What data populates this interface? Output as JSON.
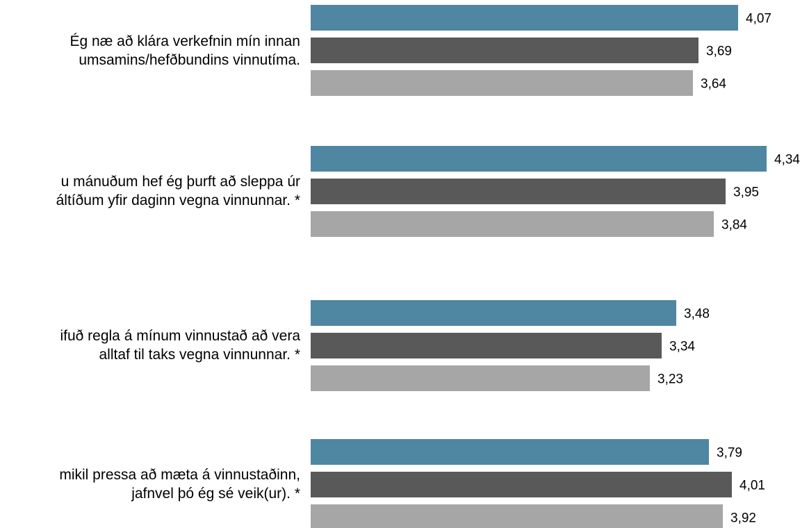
{
  "chart_data": {
    "type": "bar",
    "orientation": "horizontal",
    "categories": [
      [
        "Ég næ að klára verkefnin mín innan",
        "umsamins/hefðbundins vinnutíma."
      ],
      [
        "u mánuðum hef ég þurft að sleppa úr",
        "áltíðum yfir daginn vegna vinnunnar. *"
      ],
      [
        "ifuð regla á mínum vinnustað að vera",
        "alltaf til taks vegna vinnunnar. *"
      ],
      [
        "mikil pressa að mæta á vinnustaðinn,",
        "jafnvel þó ég sé veik(ur). *"
      ]
    ],
    "series": [
      {
        "color": "#4f86a1",
        "values": [
          4.07,
          4.34,
          3.48,
          3.79
        ],
        "labels": [
          "4,07",
          "4,34",
          "3,48",
          "3,79"
        ]
      },
      {
        "color": "#595959",
        "values": [
          3.69,
          3.95,
          3.34,
          4.01
        ],
        "labels": [
          "3,69",
          "3,95",
          "3,34",
          "4,01"
        ]
      },
      {
        "color": "#a6a6a6",
        "values": [
          3.64,
          3.84,
          3.23,
          3.92
        ],
        "labels": [
          "3,64",
          "3,84",
          "3,23",
          "3,92"
        ]
      }
    ],
    "xlim": [
      0,
      4.34
    ],
    "grid": false,
    "legend": "none"
  }
}
